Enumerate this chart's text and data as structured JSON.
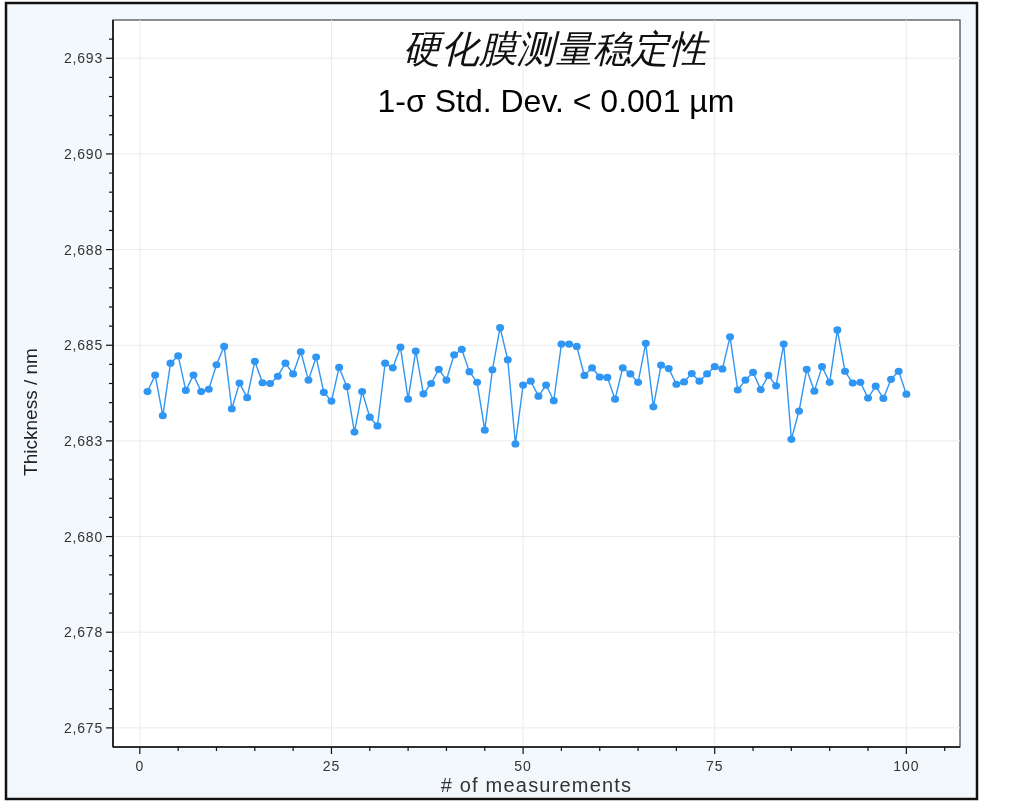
{
  "chart_data": {
    "type": "line",
    "title": "硬化膜测量稳定性",
    "subtitle": "1-σ Std. Dev. < 0.001 µm",
    "xlabel": "# of measurements",
    "ylabel": "Thickness / nm",
    "x": [
      1,
      2,
      3,
      4,
      5,
      6,
      7,
      8,
      9,
      10,
      11,
      12,
      13,
      14,
      15,
      16,
      17,
      18,
      19,
      20,
      21,
      22,
      23,
      24,
      25,
      26,
      27,
      28,
      29,
      30,
      31,
      32,
      33,
      34,
      35,
      36,
      37,
      38,
      39,
      40,
      41,
      42,
      43,
      44,
      45,
      46,
      47,
      48,
      49,
      50,
      51,
      52,
      53,
      54,
      55,
      56,
      57,
      58,
      59,
      60,
      61,
      62,
      63,
      64,
      65,
      66,
      67,
      68,
      69,
      70,
      71,
      72,
      73,
      74,
      75,
      76,
      77,
      78,
      79,
      80,
      81,
      82,
      83,
      84,
      85,
      86,
      87,
      88,
      89,
      90,
      91,
      92,
      93,
      94,
      95,
      96,
      97,
      98,
      99,
      100
    ],
    "series": [
      {
        "color": "#3096f3",
        "values": [
          2683.79,
          2684.22,
          2683.16,
          2684.53,
          2684.72,
          2683.82,
          2684.22,
          2683.79,
          2683.85,
          2684.49,
          2684.97,
          2683.34,
          2684.01,
          2683.63,
          2684.58,
          2684.02,
          2684.0,
          2684.19,
          2684.53,
          2684.25,
          2684.83,
          2684.09,
          2684.69,
          2683.77,
          2683.54,
          2684.42,
          2683.92,
          2682.73,
          2683.79,
          2683.12,
          2682.89,
          2684.53,
          2684.41,
          2684.95,
          2683.59,
          2684.85,
          2683.73,
          2684.0,
          2684.37,
          2684.09,
          2684.75,
          2684.89,
          2684.31,
          2684.03,
          2682.78,
          2684.36,
          2685.46,
          2684.62,
          2682.42,
          2683.96,
          2684.06,
          2683.67,
          2683.96,
          2683.55,
          2685.03,
          2685.03,
          2684.97,
          2684.21,
          2684.41,
          2684.17,
          2684.16,
          2683.59,
          2684.41,
          2684.25,
          2684.03,
          2685.05,
          2683.39,
          2684.48,
          2684.39,
          2683.98,
          2684.04,
          2684.26,
          2684.06,
          2684.25,
          2684.44,
          2684.38,
          2685.22,
          2683.83,
          2684.09,
          2684.29,
          2683.84,
          2684.21,
          2683.94,
          2685.03,
          2682.54,
          2683.28,
          2684.37,
          2683.8,
          2684.44,
          2684.03,
          2685.4,
          2684.32,
          2684.01,
          2684.03,
          2683.62,
          2683.93,
          2683.61,
          2684.11,
          2684.32,
          2683.72
        ]
      }
    ],
    "xlim": [
      -3.5,
      107
    ],
    "ylim": [
      2674.5,
      2693.5
    ],
    "xticks": [
      0,
      {
        "value": 5,
        "label": null
      },
      {
        "value": 10,
        "label": null
      },
      {
        "value": 15,
        "label": null
      },
      {
        "value": 20,
        "label": null
      },
      25,
      {
        "value": 30,
        "label": null
      },
      {
        "value": 35,
        "label": null
      },
      {
        "value": 40,
        "label": null
      },
      {
        "value": 45,
        "label": null
      },
      50,
      {
        "value": 55,
        "label": null
      },
      {
        "value": 60,
        "label": null
      },
      {
        "value": 65,
        "label": null
      },
      {
        "value": 70,
        "label": null
      },
      75,
      {
        "value": 80,
        "label": null
      },
      {
        "value": 85,
        "label": null
      },
      {
        "value": 90,
        "label": null
      },
      {
        "value": 95,
        "label": null
      },
      100,
      {
        "value": 105,
        "label": null
      }
    ],
    "yticks": [
      {
        "value": 2675,
        "label": "2,675"
      },
      {
        "value": 2675.5,
        "label": null
      },
      {
        "value": 2676,
        "label": null
      },
      {
        "value": 2676.5,
        "label": null
      },
      {
        "value": 2677,
        "label": null
      },
      {
        "value": 2677.5,
        "label": "2,678"
      },
      {
        "value": 2678,
        "label": null
      },
      {
        "value": 2678.5,
        "label": null
      },
      {
        "value": 2679,
        "label": null
      },
      {
        "value": 2679.5,
        "label": null
      },
      {
        "value": 2680,
        "label": "2,680"
      },
      {
        "value": 2680.5,
        "label": null
      },
      {
        "value": 2681,
        "label": null
      },
      {
        "value": 2681.5,
        "label": null
      },
      {
        "value": 2682,
        "label": null
      },
      {
        "value": 2682.5,
        "label": "2,683"
      },
      {
        "value": 2683,
        "label": null
      },
      {
        "value": 2683.5,
        "label": null
      },
      {
        "value": 2684,
        "label": null
      },
      {
        "value": 2684.5,
        "label": null
      },
      {
        "value": 2685,
        "label": "2,685"
      },
      {
        "value": 2685.5,
        "label": null
      },
      {
        "value": 2686,
        "label": null
      },
      {
        "value": 2686.5,
        "label": null
      },
      {
        "value": 2687,
        "label": null
      },
      {
        "value": 2687.5,
        "label": "2,688"
      },
      {
        "value": 2688,
        "label": null
      },
      {
        "value": 2688.5,
        "label": null
      },
      {
        "value": 2689,
        "label": null
      },
      {
        "value": 2689.5,
        "label": null
      },
      {
        "value": 2690,
        "label": "2,690"
      },
      {
        "value": 2690.5,
        "label": null
      },
      {
        "value": 2691,
        "label": null
      },
      {
        "value": 2691.5,
        "label": null
      },
      {
        "value": 2692,
        "label": null
      },
      {
        "value": 2692.5,
        "label": "2,693"
      },
      {
        "value": 2693,
        "label": null
      }
    ],
    "grid": true,
    "marker": "circle",
    "line_style": "solid"
  }
}
